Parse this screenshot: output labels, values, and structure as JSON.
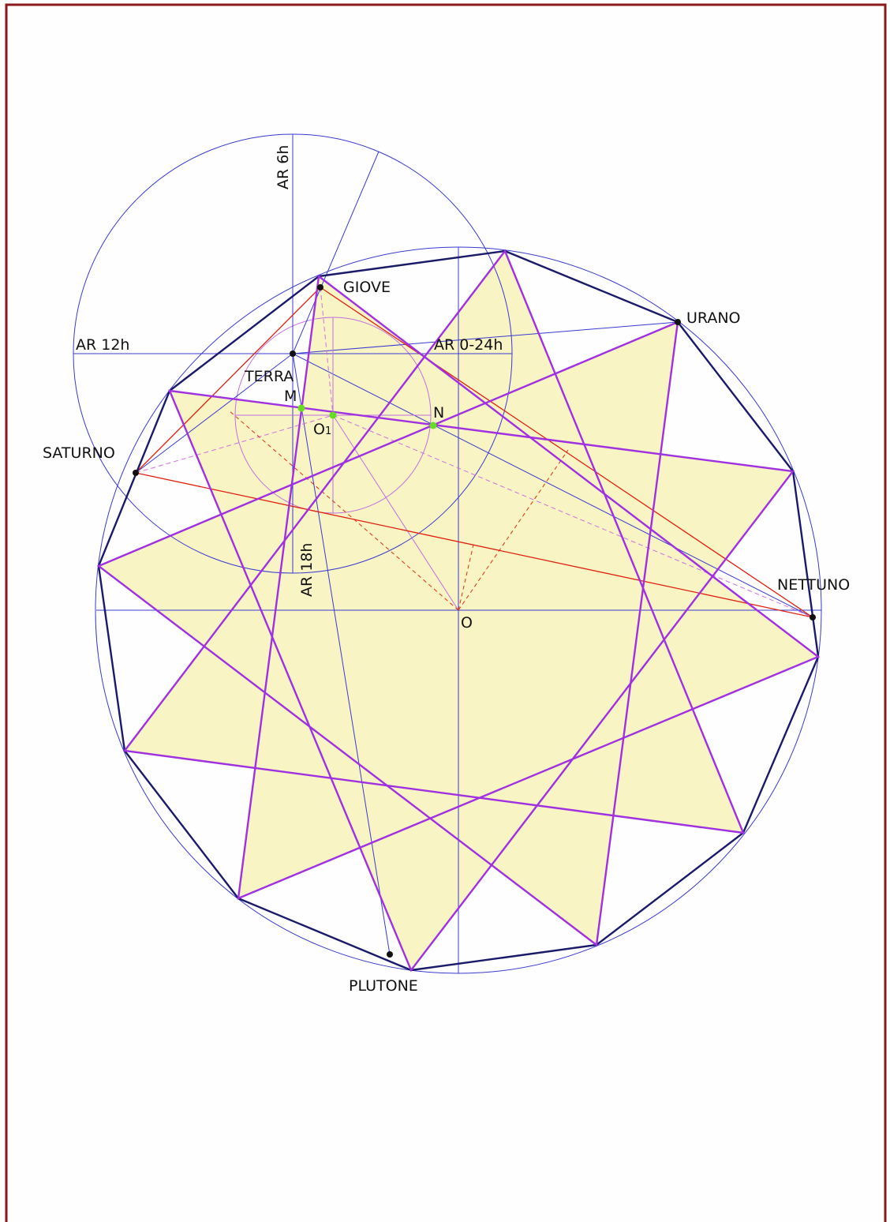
{
  "labels": {
    "ar6": "AR 6h",
    "ar12": "AR 12h",
    "ar0": "AR 0-24h",
    "ar18": "AR 18h",
    "giove": "GIOVE",
    "urano": "URANO",
    "terra": "TERRA",
    "m": "M",
    "n": "N",
    "o1": "O",
    "o1sub": "1",
    "saturno": "SATURNO",
    "nettuno": "NETTUNO",
    "o": "O",
    "plutone": "PLUTONE"
  }
}
